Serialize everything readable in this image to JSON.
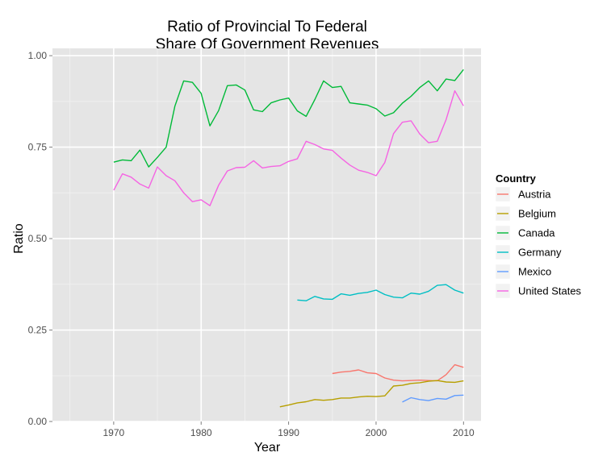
{
  "chart_data": {
    "type": "line",
    "title": [
      "Ratio of Provincial To Federal",
      "Share Of Government Revenues"
    ],
    "xlabel": "Year",
    "ylabel": "Ratio",
    "xlim": [
      1963,
      2012
    ],
    "ylim": [
      0,
      1.02
    ],
    "x_ticks": [
      1970,
      1980,
      1990,
      2000,
      2010
    ],
    "y_ticks": [
      0.0,
      0.25,
      0.5,
      0.75,
      1.0
    ],
    "y_tick_labels": [
      "0.00",
      "0.25",
      "0.50",
      "0.75",
      "1.00"
    ],
    "grid": true,
    "legend": {
      "title": "Country",
      "position": "right"
    },
    "series": [
      {
        "name": "Austria",
        "color": "#F8766D",
        "x": [
          1995,
          1996,
          1997,
          1998,
          1999,
          2000,
          2001,
          2002,
          2003,
          2004,
          2005,
          2006,
          2007,
          2008,
          2009,
          2010
        ],
        "y": [
          0.131,
          0.135,
          0.137,
          0.141,
          0.133,
          0.131,
          0.119,
          0.113,
          0.111,
          0.112,
          0.113,
          0.112,
          0.111,
          0.128,
          0.155,
          0.148
        ]
      },
      {
        "name": "Belgium",
        "color": "#B79F00",
        "x": [
          1989,
          1990,
          1991,
          1992,
          1993,
          1994,
          1995,
          1996,
          1997,
          1998,
          1999,
          2000,
          2001,
          2002,
          2003,
          2004,
          2005,
          2006,
          2007,
          2008,
          2009,
          2010
        ],
        "y": [
          0.04,
          0.045,
          0.051,
          0.054,
          0.06,
          0.058,
          0.06,
          0.064,
          0.064,
          0.067,
          0.069,
          0.068,
          0.07,
          0.097,
          0.099,
          0.104,
          0.106,
          0.11,
          0.112,
          0.108,
          0.107,
          0.111
        ]
      },
      {
        "name": "Canada",
        "color": "#00BA38",
        "x": [
          1970,
          1971,
          1972,
          1973,
          1974,
          1975,
          1976,
          1977,
          1978,
          1979,
          1980,
          1981,
          1982,
          1983,
          1984,
          1985,
          1986,
          1987,
          1988,
          1989,
          1990,
          1991,
          1992,
          1993,
          1994,
          1995,
          1996,
          1997,
          1998,
          1999,
          2000,
          2001,
          2002,
          2003,
          2004,
          2005,
          2006,
          2007,
          2008,
          2009,
          2010
        ],
        "y": [
          0.709,
          0.715,
          0.713,
          0.742,
          0.696,
          0.722,
          0.75,
          0.862,
          0.931,
          0.927,
          0.897,
          0.808,
          0.85,
          0.918,
          0.92,
          0.906,
          0.852,
          0.847,
          0.871,
          0.879,
          0.884,
          0.849,
          0.834,
          0.88,
          0.931,
          0.913,
          0.916,
          0.871,
          0.868,
          0.865,
          0.855,
          0.835,
          0.844,
          0.87,
          0.889,
          0.913,
          0.931,
          0.904,
          0.936,
          0.932,
          0.962
        ]
      },
      {
        "name": "Germany",
        "color": "#00BFC4",
        "x": [
          1991,
          1992,
          1993,
          1994,
          1995,
          1996,
          1997,
          1998,
          1999,
          2000,
          2001,
          2002,
          2003,
          2004,
          2005,
          2006,
          2007,
          2008,
          2009,
          2010
        ],
        "y": [
          0.332,
          0.33,
          0.342,
          0.335,
          0.334,
          0.349,
          0.345,
          0.35,
          0.353,
          0.359,
          0.347,
          0.34,
          0.338,
          0.351,
          0.348,
          0.356,
          0.372,
          0.374,
          0.359,
          0.351
        ]
      },
      {
        "name": "Mexico",
        "color": "#619CFF",
        "x": [
          2003,
          2004,
          2005,
          2006,
          2007,
          2008,
          2009,
          2010
        ],
        "y": [
          0.053,
          0.065,
          0.06,
          0.057,
          0.063,
          0.061,
          0.071,
          0.072
        ]
      },
      {
        "name": "United States",
        "color": "#F564E3",
        "x": [
          1970,
          1971,
          1972,
          1973,
          1974,
          1975,
          1976,
          1977,
          1978,
          1979,
          1980,
          1981,
          1982,
          1983,
          1984,
          1985,
          1986,
          1987,
          1988,
          1989,
          1990,
          1991,
          1992,
          1993,
          1994,
          1995,
          1996,
          1997,
          1998,
          1999,
          2000,
          2001,
          2002,
          2003,
          2004,
          2005,
          2006,
          2007,
          2008,
          2009,
          2010
        ],
        "y": [
          0.632,
          0.677,
          0.668,
          0.649,
          0.638,
          0.696,
          0.672,
          0.658,
          0.625,
          0.601,
          0.606,
          0.59,
          0.646,
          0.685,
          0.694,
          0.695,
          0.713,
          0.693,
          0.697,
          0.699,
          0.711,
          0.718,
          0.766,
          0.757,
          0.745,
          0.741,
          0.72,
          0.701,
          0.687,
          0.681,
          0.672,
          0.708,
          0.787,
          0.818,
          0.822,
          0.786,
          0.762,
          0.766,
          0.825,
          0.904,
          0.863
        ]
      }
    ]
  }
}
